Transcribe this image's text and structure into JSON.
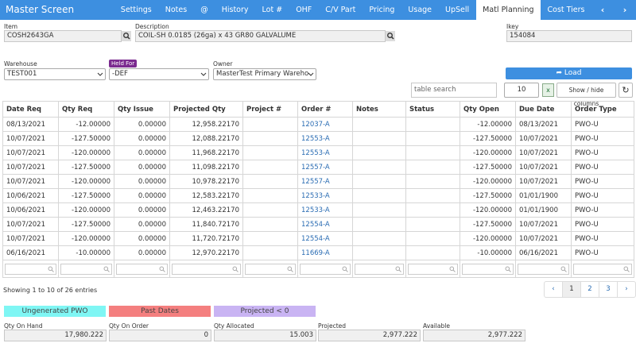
{
  "header": {
    "title": "Master Screen",
    "tabs": [
      "Settings",
      "Notes",
      "@",
      "History",
      "Lot #",
      "OHF",
      "C/V Part",
      "Pricing",
      "Usage",
      "UpSell",
      "Matl Planning",
      "Cost Tiers"
    ],
    "active_tab": "Matl Planning"
  },
  "form": {
    "item": {
      "label": "Item",
      "value": "COSH2643GA"
    },
    "description": {
      "label": "Description",
      "value": "COIL-SH 0.0185 (26ga) x 43 GR80 GALVALUME"
    },
    "ikey": {
      "label": "Ikey",
      "value": "154084"
    },
    "warehouse": {
      "label": "Warehouse",
      "value": "TEST001"
    },
    "held_for": {
      "label": "Held For",
      "value": "-DEF"
    },
    "owner": {
      "label": "Owner",
      "value": "MasterTest Primary Wareho"
    }
  },
  "controls": {
    "load": "Load",
    "search_placeholder": "table search",
    "page_size": "10",
    "show_hide": "Show / hide columns"
  },
  "table": {
    "columns": [
      "Date Req",
      "Qty Req",
      "Qty Issue",
      "Projected Qty",
      "Project #",
      "Order #",
      "Notes",
      "Status",
      "Qty Open",
      "Due Date",
      "Order Type"
    ],
    "rows": [
      [
        "08/13/2021",
        "-12.00000",
        "0.00000",
        "12,958.22170",
        "",
        "12037-A",
        "",
        "",
        "-12.00000",
        "08/13/2021",
        "PWO-U"
      ],
      [
        "10/07/2021",
        "-127.50000",
        "0.00000",
        "12,088.22170",
        "",
        "12553-A",
        "",
        "",
        "-127.50000",
        "10/07/2021",
        "PWO-U"
      ],
      [
        "10/07/2021",
        "-120.00000",
        "0.00000",
        "11,968.22170",
        "",
        "12553-A",
        "",
        "",
        "-120.00000",
        "10/07/2021",
        "PWO-U"
      ],
      [
        "10/07/2021",
        "-127.50000",
        "0.00000",
        "11,098.22170",
        "",
        "12557-A",
        "",
        "",
        "-127.50000",
        "10/07/2021",
        "PWO-U"
      ],
      [
        "10/07/2021",
        "-120.00000",
        "0.00000",
        "10,978.22170",
        "",
        "12557-A",
        "",
        "",
        "-120.00000",
        "10/07/2021",
        "PWO-U"
      ],
      [
        "10/06/2021",
        "-127.50000",
        "0.00000",
        "12,583.22170",
        "",
        "12533-A",
        "",
        "",
        "-127.50000",
        "01/01/1900",
        "PWO-U"
      ],
      [
        "10/06/2021",
        "-120.00000",
        "0.00000",
        "12,463.22170",
        "",
        "12533-A",
        "",
        "",
        "-120.00000",
        "01/01/1900",
        "PWO-U"
      ],
      [
        "10/07/2021",
        "-127.50000",
        "0.00000",
        "11,840.72170",
        "",
        "12554-A",
        "",
        "",
        "-127.50000",
        "10/07/2021",
        "PWO-U"
      ],
      [
        "10/07/2021",
        "-120.00000",
        "0.00000",
        "11,720.72170",
        "",
        "12554-A",
        "",
        "",
        "-120.00000",
        "10/07/2021",
        "PWO-U"
      ],
      [
        "06/16/2021",
        "-10.00000",
        "0.00000",
        "12,970.22170",
        "",
        "11669-A",
        "",
        "",
        "-10.00000",
        "06/16/2021",
        "PWO-U"
      ]
    ]
  },
  "footer": {
    "summary": "Showing 1 to 10 of 26 entries",
    "pages": [
      "1",
      "2",
      "3"
    ],
    "current_page": "1"
  },
  "legend": [
    "Ungenerated PWO",
    "Past Dates",
    "Projected < 0"
  ],
  "totals": [
    {
      "label": "Qty On Hand",
      "value": "17,980.222"
    },
    {
      "label": "Qty On Order",
      "value": "0"
    },
    {
      "label": "Qty Allocated",
      "value": "15.003"
    },
    {
      "label": "Projected",
      "value": "2,977.222"
    },
    {
      "label": "Available",
      "value": "2,977.222"
    }
  ]
}
